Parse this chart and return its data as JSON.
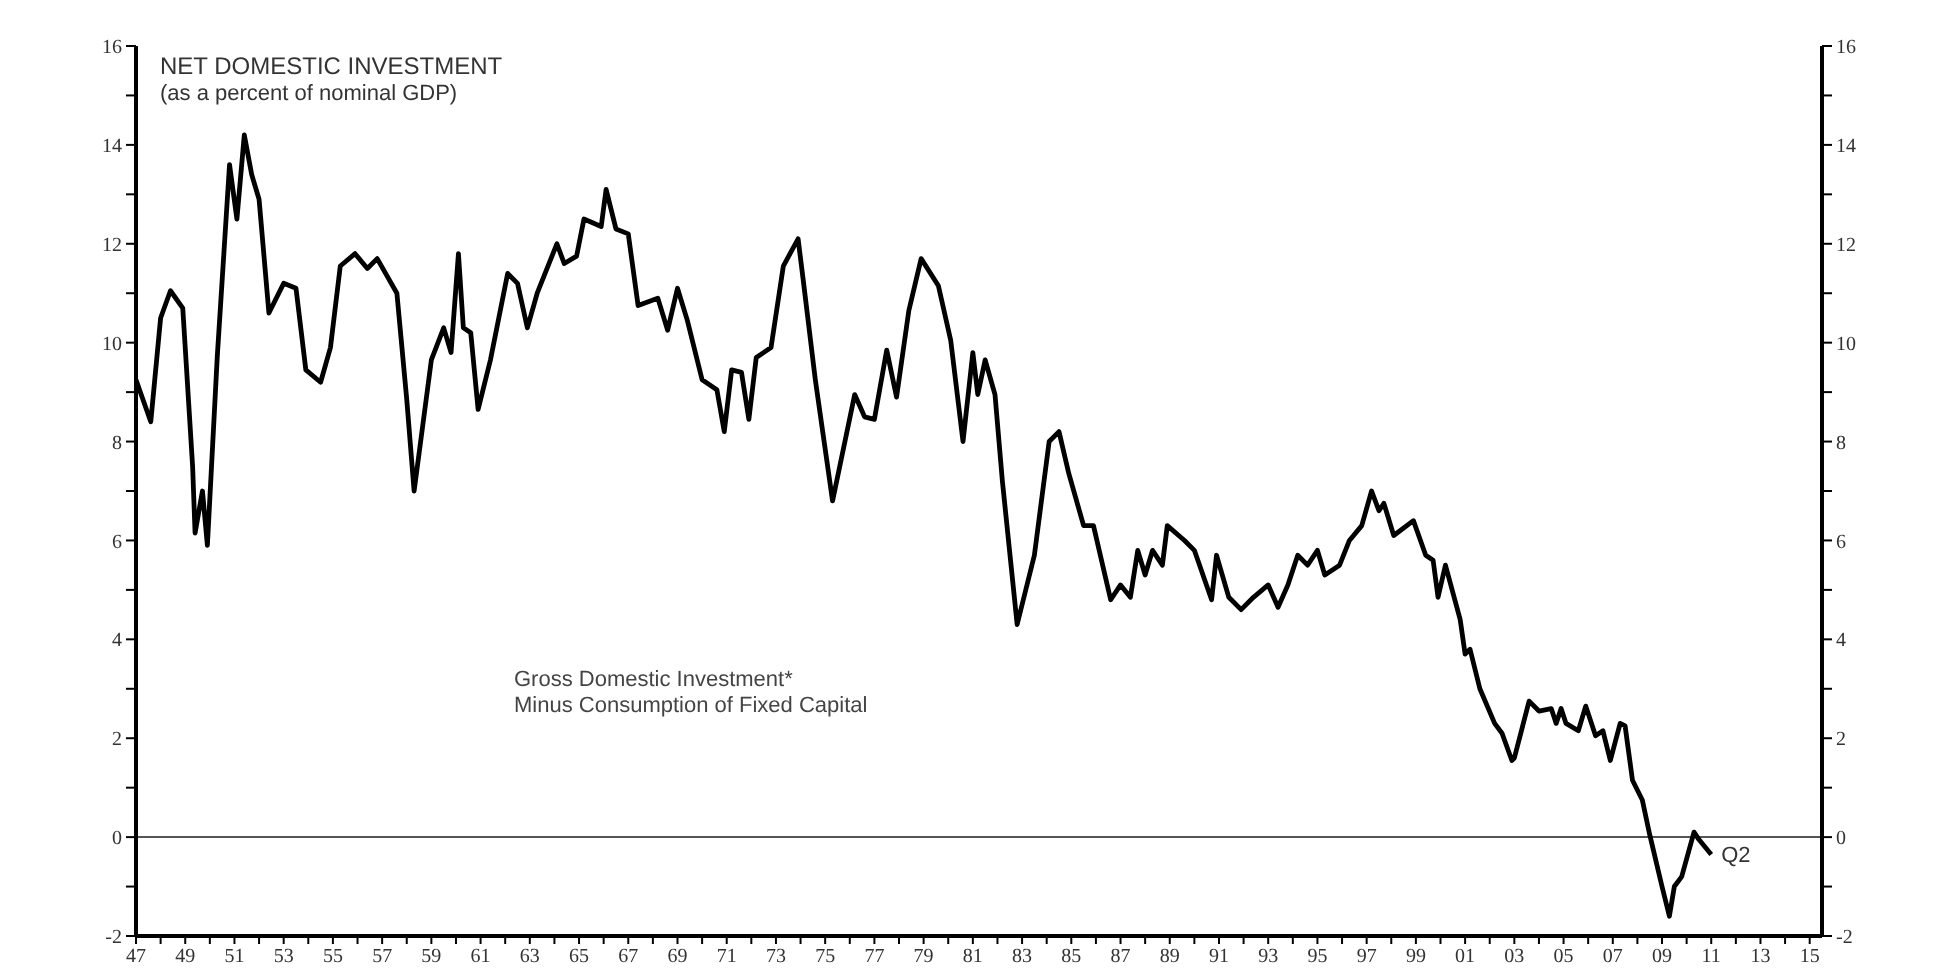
{
  "chart_data": {
    "type": "line",
    "title": "NET DOMESTIC INVESTMENT",
    "subtitle": "(as a percent of nominal GDP)",
    "annotations": [
      "Gross Domestic Investment*\nMinus Consumption of Fixed Capital",
      {
        "text": "Q2",
        "x": 2011.0,
        "y": -0.35
      }
    ],
    "x": [
      1947.0,
      1947.6,
      1948.0,
      1948.4,
      1948.9,
      1949.3,
      1949.4,
      1949.7,
      1949.9,
      1950.3,
      1950.8,
      1951.1,
      1951.4,
      1951.7,
      1952.0,
      1952.4,
      1953.0,
      1953.5,
      1953.9,
      1954.5,
      1954.9,
      1955.3,
      1955.9,
      1956.4,
      1956.8,
      1957.6,
      1958.0,
      1958.3,
      1959.0,
      1959.5,
      1959.8,
      1960.1,
      1960.3,
      1960.6,
      1960.9,
      1961.4,
      1962.1,
      1962.5,
      1962.9,
      1963.3,
      1964.1,
      1964.4,
      1964.9,
      1965.2,
      1965.9,
      1966.1,
      1966.5,
      1967.0,
      1967.4,
      1968.2,
      1968.6,
      1969.0,
      1969.4,
      1970.0,
      1970.6,
      1970.9,
      1971.2,
      1971.6,
      1971.9,
      1972.2,
      1972.8,
      1973.3,
      1973.9,
      1974.1,
      1974.6,
      1975.3,
      1976.2,
      1976.6,
      1977.0,
      1977.5,
      1977.9,
      1978.4,
      1978.9,
      1979.6,
      1980.1,
      1980.6,
      1981.0,
      1981.2,
      1981.5,
      1981.9,
      1982.2,
      1982.8,
      1983.5,
      1984.1,
      1984.5,
      1984.9,
      1985.5,
      1985.9,
      1986.6,
      1987.0,
      1987.4,
      1987.7,
      1988.0,
      1988.3,
      1988.7,
      1988.9,
      1989.6,
      1990.0,
      1990.7,
      1990.9,
      1991.4,
      1991.9,
      1992.4,
      1993.0,
      1993.4,
      1993.8,
      1994.2,
      1994.6,
      1995.0,
      1995.3,
      1995.9,
      1996.3,
      1996.8,
      1997.2,
      1997.5,
      1997.7,
      1998.1,
      1998.9,
      1999.4,
      1999.7,
      1999.9,
      2000.2,
      2000.8,
      2001.0,
      2001.2,
      2001.6,
      2002.2,
      2002.5,
      2002.9,
      2003.0,
      2003.6,
      2004.0,
      2004.5,
      2004.7,
      2004.9,
      2005.1,
      2005.6,
      2005.9,
      2006.3,
      2006.6,
      2006.9,
      2007.3,
      2007.5,
      2007.8,
      2008.2,
      2008.5,
      2009.0,
      2009.3,
      2009.5,
      2009.8,
      2010.3,
      2010.5,
      2011.0
    ],
    "series": [
      {
        "color": "#000000",
        "values": [
          9.25,
          8.4,
          10.5,
          11.05,
          10.7,
          7.5,
          6.15,
          7.0,
          5.9,
          9.7,
          13.6,
          12.5,
          14.2,
          13.4,
          12.9,
          10.6,
          11.2,
          11.1,
          9.45,
          9.2,
          9.9,
          11.55,
          11.8,
          11.5,
          11.7,
          11.0,
          8.85,
          7.0,
          9.65,
          10.3,
          9.8,
          11.8,
          10.3,
          10.2,
          8.65,
          9.65,
          11.4,
          11.2,
          10.3,
          11.0,
          12.0,
          11.6,
          11.75,
          12.5,
          12.35,
          13.1,
          12.3,
          12.2,
          10.75,
          10.9,
          10.25,
          11.1,
          10.45,
          9.25,
          9.05,
          8.2,
          9.45,
          9.4,
          8.45,
          9.7,
          9.9,
          11.55,
          12.1,
          11.3,
          9.25,
          6.8,
          8.95,
          8.5,
          8.45,
          9.85,
          8.9,
          10.65,
          11.7,
          11.15,
          10.05,
          8.0,
          9.8,
          8.95,
          9.65,
          8.95,
          7.2,
          4.3,
          5.7,
          8.0,
          8.2,
          7.35,
          6.3,
          6.3,
          4.8,
          5.1,
          4.85,
          5.8,
          5.3,
          5.8,
          5.5,
          6.3,
          6.0,
          5.8,
          4.8,
          5.7,
          4.85,
          4.6,
          4.85,
          5.1,
          4.65,
          5.1,
          5.7,
          5.5,
          5.8,
          5.3,
          5.5,
          6.0,
          6.3,
          7.0,
          6.6,
          6.75,
          6.1,
          6.4,
          5.7,
          5.6,
          4.85,
          5.5,
          4.4,
          3.7,
          3.8,
          3.0,
          2.3,
          2.1,
          1.55,
          1.6,
          2.75,
          2.55,
          2.6,
          2.3,
          2.6,
          2.3,
          2.15,
          2.65,
          2.05,
          2.15,
          1.55,
          2.3,
          2.25,
          1.15,
          0.75,
          0.05,
          -1.0,
          -1.6,
          -1.0,
          -0.8,
          0.1,
          -0.05,
          -0.35
        ]
      }
    ],
    "xlim": [
      1947,
      2015.5
    ],
    "xticks": [
      {
        "value": 1947,
        "label": "47"
      },
      {
        "value": 1948,
        "label": null
      },
      {
        "value": 1949,
        "label": "49"
      },
      {
        "value": 1950,
        "label": null
      },
      {
        "value": 1951,
        "label": "51"
      },
      {
        "value": 1952,
        "label": null
      },
      {
        "value": 1953,
        "label": "53"
      },
      {
        "value": 1954,
        "label": null
      },
      {
        "value": 1955,
        "label": "55"
      },
      {
        "value": 1956,
        "label": null
      },
      {
        "value": 1957,
        "label": "57"
      },
      {
        "value": 1958,
        "label": null
      },
      {
        "value": 1959,
        "label": "59"
      },
      {
        "value": 1960,
        "label": null
      },
      {
        "value": 1961,
        "label": "61"
      },
      {
        "value": 1962,
        "label": null
      },
      {
        "value": 1963,
        "label": "63"
      },
      {
        "value": 1964,
        "label": null
      },
      {
        "value": 1965,
        "label": "65"
      },
      {
        "value": 1966,
        "label": null
      },
      {
        "value": 1967,
        "label": "67"
      },
      {
        "value": 1968,
        "label": null
      },
      {
        "value": 1969,
        "label": "69"
      },
      {
        "value": 1970,
        "label": null
      },
      {
        "value": 1971,
        "label": "71"
      },
      {
        "value": 1972,
        "label": null
      },
      {
        "value": 1973,
        "label": "73"
      },
      {
        "value": 1974,
        "label": null
      },
      {
        "value": 1975,
        "label": "75"
      },
      {
        "value": 1976,
        "label": null
      },
      {
        "value": 1977,
        "label": "77"
      },
      {
        "value": 1978,
        "label": null
      },
      {
        "value": 1979,
        "label": "79"
      },
      {
        "value": 1980,
        "label": null
      },
      {
        "value": 1981,
        "label": "81"
      },
      {
        "value": 1982,
        "label": null
      },
      {
        "value": 1983,
        "label": "83"
      },
      {
        "value": 1984,
        "label": null
      },
      {
        "value": 1985,
        "label": "85"
      },
      {
        "value": 1986,
        "label": null
      },
      {
        "value": 1987,
        "label": "87"
      },
      {
        "value": 1988,
        "label": null
      },
      {
        "value": 1989,
        "label": "89"
      },
      {
        "value": 1990,
        "label": null
      },
      {
        "value": 1991,
        "label": "91"
      },
      {
        "value": 1992,
        "label": null
      },
      {
        "value": 1993,
        "label": "93"
      },
      {
        "value": 1994,
        "label": null
      },
      {
        "value": 1995,
        "label": "95"
      },
      {
        "value": 1996,
        "label": null
      },
      {
        "value": 1997,
        "label": "97"
      },
      {
        "value": 1998,
        "label": null
      },
      {
        "value": 1999,
        "label": "99"
      },
      {
        "value": 2000,
        "label": null
      },
      {
        "value": 2001,
        "label": "01"
      },
      {
        "value": 2002,
        "label": null
      },
      {
        "value": 2003,
        "label": "03"
      },
      {
        "value": 2004,
        "label": null
      },
      {
        "value": 2005,
        "label": "05"
      },
      {
        "value": 2006,
        "label": null
      },
      {
        "value": 2007,
        "label": "07"
      },
      {
        "value": 2008,
        "label": null
      },
      {
        "value": 2009,
        "label": "09"
      },
      {
        "value": 2010,
        "label": null
      },
      {
        "value": 2011,
        "label": "11"
      },
      {
        "value": 2012,
        "label": null
      },
      {
        "value": 2013,
        "label": "13"
      },
      {
        "value": 2014,
        "label": null
      },
      {
        "value": 2015,
        "label": "15"
      }
    ],
    "ylim": [
      -2,
      16
    ],
    "yticks": [
      -2,
      {
        "value": -1,
        "label": null
      },
      0,
      {
        "value": 1,
        "label": null
      },
      2,
      {
        "value": 3,
        "label": null
      },
      4,
      {
        "value": 5,
        "label": null
      },
      6,
      {
        "value": 7,
        "label": null
      },
      8,
      {
        "value": 9,
        "label": null
      },
      10,
      {
        "value": 11,
        "label": null
      },
      12,
      {
        "value": 13,
        "label": null
      },
      14,
      {
        "value": 15,
        "label": null
      },
      16
    ],
    "y2lim": [
      -2,
      16
    ],
    "y2ticks": [
      -2,
      {
        "value": -1,
        "label": null
      },
      0,
      {
        "value": 1,
        "label": null
      },
      2,
      {
        "value": 3,
        "label": null
      },
      4,
      {
        "value": 5,
        "label": null
      },
      6,
      {
        "value": 7,
        "label": null
      },
      8,
      {
        "value": 9,
        "label": null
      },
      10,
      {
        "value": 11,
        "label": null
      },
      12,
      {
        "value": 13,
        "label": null
      },
      14,
      {
        "value": 15,
        "label": null
      },
      16
    ],
    "ref_lines": [
      {
        "axis": "y",
        "value": 0,
        "color": "#555555"
      }
    ]
  }
}
